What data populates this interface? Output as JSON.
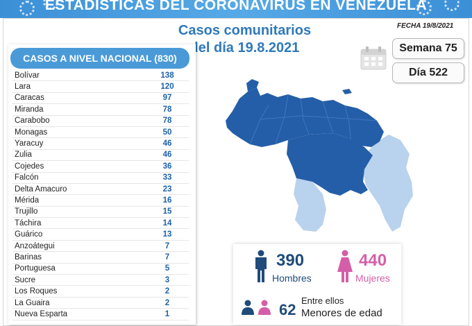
{
  "banner": {
    "title": "ESTADÍSTICAS DEL CORONAVIRUS EN VENEZUELA"
  },
  "main_title": {
    "line1": "Casos comunitarios",
    "line2": "del día 19.8.2021"
  },
  "fecha": "FECHA 19/8/2021",
  "semana": "Semana 75",
  "dia": "Día 522",
  "table": {
    "header": "CASOS A NIVEL NACIONAL (830)",
    "rows": [
      {
        "state": "Bolívar",
        "cases": "138"
      },
      {
        "state": "Lara",
        "cases": "120"
      },
      {
        "state": "Caracas",
        "cases": "97"
      },
      {
        "state": "Miranda",
        "cases": "78"
      },
      {
        "state": "Carabobo",
        "cases": "78"
      },
      {
        "state": "Monagas",
        "cases": "50"
      },
      {
        "state": "Yaracuy",
        "cases": "46"
      },
      {
        "state": "Zulia",
        "cases": "46"
      },
      {
        "state": "Cojedes",
        "cases": "36"
      },
      {
        "state": "Falcón",
        "cases": "33"
      },
      {
        "state": "Delta Amacuro",
        "cases": "23"
      },
      {
        "state": "Mérida",
        "cases": "16"
      },
      {
        "state": "Trujillo",
        "cases": "15"
      },
      {
        "state": "Táchira",
        "cases": "14"
      },
      {
        "state": "Guárico",
        "cases": "13"
      },
      {
        "state": "Anzoátegui",
        "cases": "7"
      },
      {
        "state": "Barinas",
        "cases": "7"
      },
      {
        "state": "Portuguesa",
        "cases": "5"
      },
      {
        "state": "Sucre",
        "cases": "3"
      },
      {
        "state": "Los Roques",
        "cases": "2"
      },
      {
        "state": "La Guaira",
        "cases": "2"
      },
      {
        "state": "Nueva Esparta",
        "cases": "1"
      }
    ]
  },
  "stats": {
    "men_count": "390",
    "men_label": "Hombres",
    "women_count": "440",
    "women_label": "Mujeres",
    "minors_prefix": "Entre ellos",
    "minors_count": "62",
    "minors_label": "Menores de edad"
  },
  "colors": {
    "banner": "#4a9ad8",
    "title_blue": "#2f79bb",
    "map_dark": "#245ea8",
    "map_light": "#b9d2ee",
    "men": "#1f4c7a",
    "women": "#d45fa8"
  },
  "icons": [
    "virus-icon",
    "calendar-icon",
    "man-icon",
    "woman-icon",
    "family-icon"
  ]
}
